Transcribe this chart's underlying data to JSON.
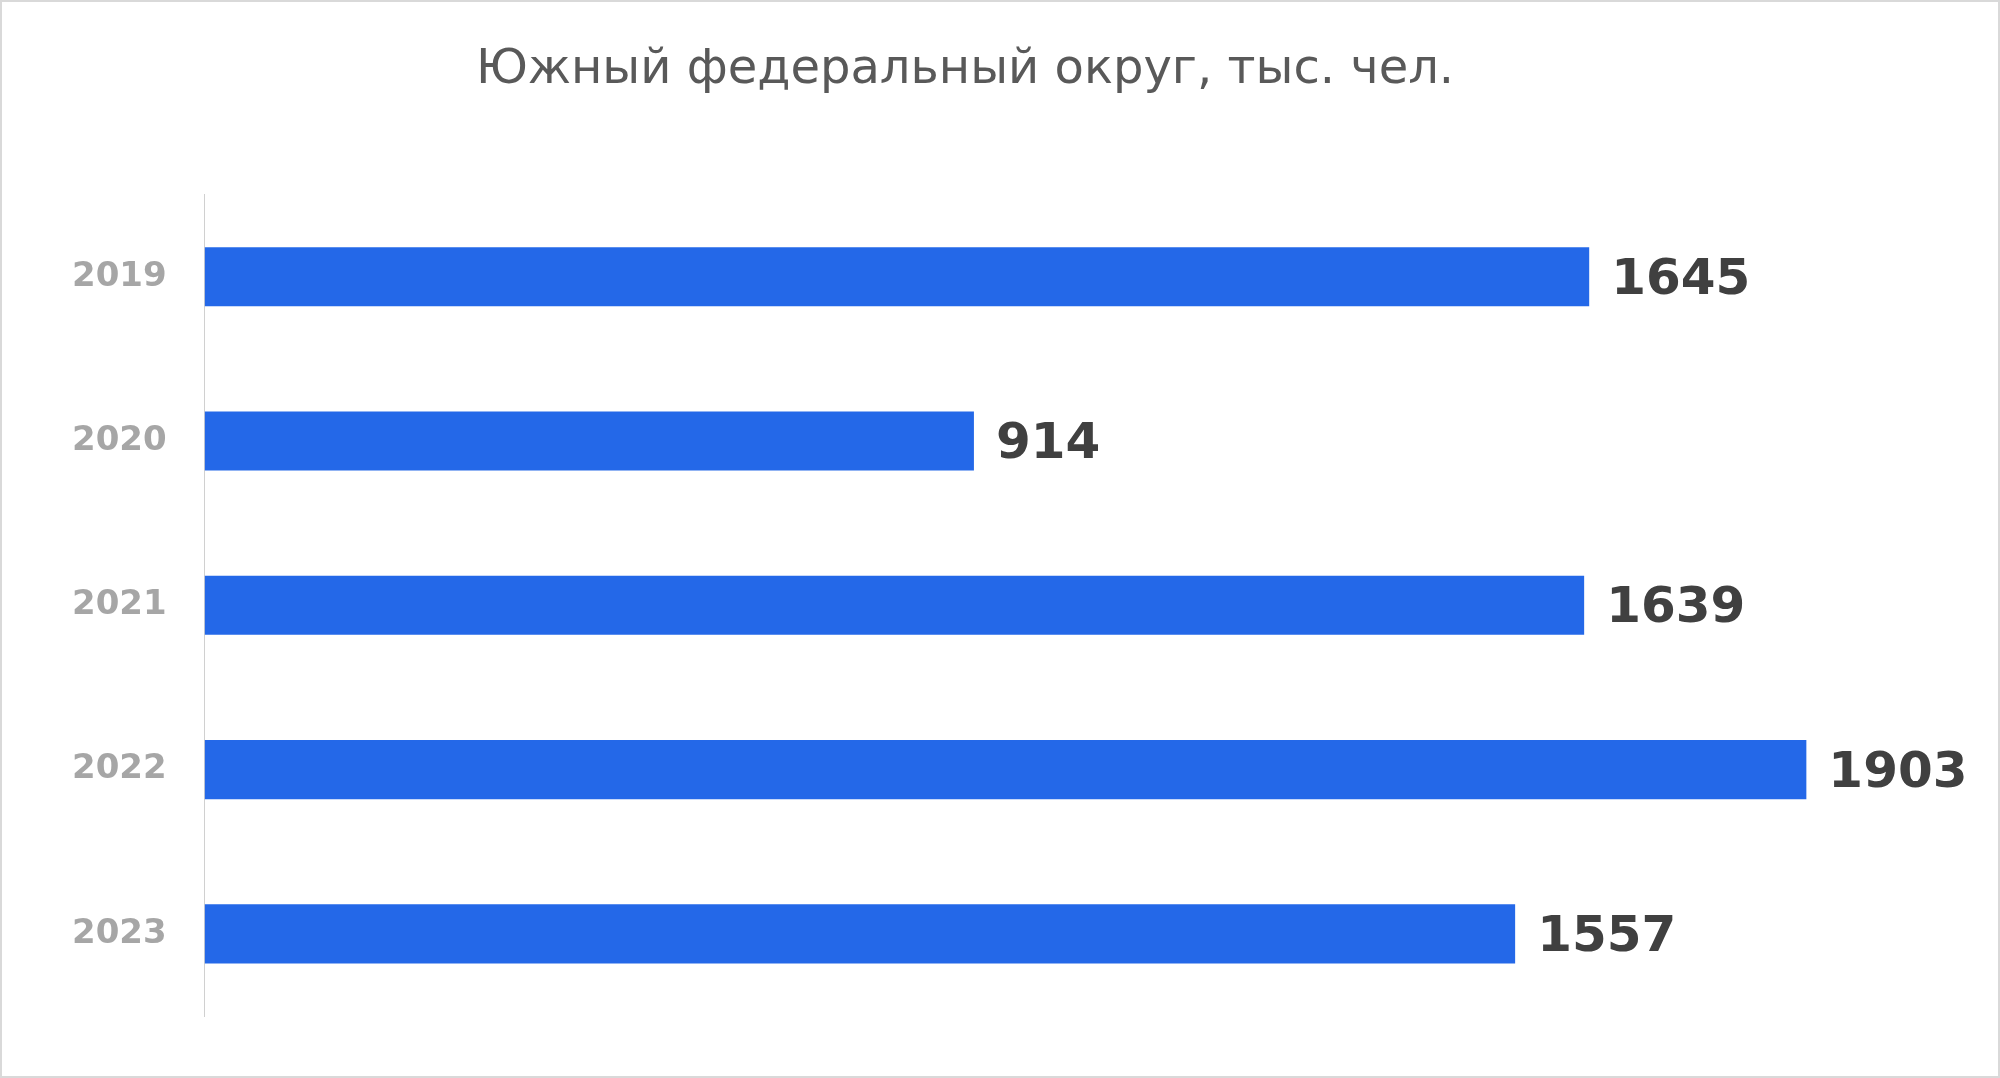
{
  "chart_data": {
    "type": "bar",
    "orientation": "horizontal",
    "title": "Южный федеральный округ, тыс. чел.",
    "categories": [
      "2019",
      "2020",
      "2021",
      "2022",
      "2023"
    ],
    "values": [
      1645,
      914,
      1639,
      1903,
      1557
    ],
    "color": "#2468e8",
    "data_labels": true
  }
}
